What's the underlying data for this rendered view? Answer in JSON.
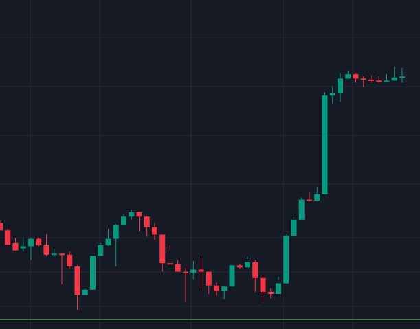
{
  "chart_data": {
    "type": "candlestick",
    "x": [
      1,
      2,
      3,
      4,
      5,
      6,
      7,
      8,
      9,
      10,
      11,
      12,
      13,
      14,
      15,
      16,
      17,
      18,
      19,
      20,
      21,
      22,
      23,
      24,
      25,
      26,
      27,
      28,
      29,
      30,
      31,
      32,
      33,
      34,
      35,
      36,
      37,
      38,
      39,
      40,
      41,
      42,
      43,
      44,
      45,
      46,
      47,
      48,
      49,
      50,
      51,
      52,
      53
    ],
    "ohlc": [
      [
        3.0,
        2.3,
        3.2,
        3.0
      ],
      [
        2.3,
        0.9,
        2.4,
        1.1
      ],
      [
        1.1,
        0.4,
        1.6,
        0.6
      ],
      [
        0.6,
        0.8,
        1.7,
        0.3
      ],
      [
        0.8,
        1.5,
        1.6,
        -0.5
      ],
      [
        1.5,
        0.9,
        1.6,
        0.8
      ],
      [
        0.9,
        0.0,
        1.9,
        -0.1
      ],
      [
        0.0,
        0.1,
        0.6,
        -0.2
      ],
      [
        0.1,
        0.0,
        0.1,
        -2.8
      ],
      [
        0.0,
        -1.1,
        0.3,
        -1.3
      ],
      [
        -1.1,
        -3.8,
        -1.0,
        -5.2
      ],
      [
        -3.8,
        -3.3,
        -3.2,
        -3.3
      ],
      [
        -3.3,
        -0.1,
        -1.6,
        -0.3
      ],
      [
        -0.1,
        0.9,
        1.1,
        0.3
      ],
      [
        0.9,
        1.5,
        2.4,
        0.8
      ],
      [
        1.5,
        2.8,
        2.9,
        -1.1
      ],
      [
        2.8,
        3.6,
        3.8,
        3.6
      ],
      [
        3.6,
        4.0,
        4.2,
        3.3
      ],
      [
        4.0,
        3.6,
        3.7,
        2.2
      ],
      [
        3.6,
        2.6,
        3.4,
        1.7
      ],
      [
        2.6,
        1.9,
        3.0,
        1.4
      ],
      [
        1.9,
        -0.8,
        -0.7,
        -1.6
      ],
      [
        -0.8,
        -0.9,
        0.9,
        0.4
      ],
      [
        -0.9,
        -1.6,
        -0.5,
        -1.5
      ],
      [
        -1.6,
        -1.7,
        -1.3,
        -4.5
      ],
      [
        -1.7,
        -1.4,
        -0.6,
        -2.3
      ],
      [
        -1.4,
        -1.6,
        -0.2,
        -3.2
      ],
      [
        -1.6,
        -2.9,
        -1.7,
        -3.7
      ],
      [
        -2.9,
        -3.4,
        -2.6,
        -3.9
      ],
      [
        -3.4,
        -3.0,
        -3.1,
        -4.2
      ],
      [
        -3.0,
        -1.0,
        -1.5,
        -1.5
      ],
      [
        -1.0,
        -1.2,
        -0.9,
        -1.3
      ],
      [
        -1.2,
        -0.7,
        -0.2,
        -0.4
      ],
      [
        -0.7,
        -2.2,
        -0.5,
        -3.5
      ],
      [
        -2.2,
        -3.5,
        -1.9,
        -4.5
      ],
      [
        -3.5,
        -3.7,
        -3.2,
        -4.1
      ],
      [
        -3.7,
        -2.7,
        -2.4,
        -2.1
      ],
      [
        -2.7,
        1.8,
        1.9,
        1.5
      ],
      [
        1.8,
        3.3,
        3.5,
        3.4
      ],
      [
        3.3,
        5.2,
        5.4,
        5.1
      ],
      [
        5.2,
        5.1,
        5.9,
        5.0
      ],
      [
        5.1,
        5.7,
        6.4,
        5.7
      ],
      [
        5.7,
        15.0,
        15.3,
        13.9
      ],
      [
        15.0,
        15.2,
        15.9,
        14.2
      ],
      [
        15.2,
        16.6,
        17.1,
        14.4
      ],
      [
        16.6,
        17.0,
        17.3,
        16.6
      ],
      [
        17.0,
        16.6,
        17.1,
        16.2
      ],
      [
        16.6,
        16.5,
        16.8,
        15.8
      ],
      [
        16.5,
        16.4,
        16.9,
        16.2
      ],
      [
        16.4,
        16.3,
        16.8,
        16.2
      ],
      [
        16.3,
        16.4,
        17.0,
        16.3
      ],
      [
        16.4,
        16.7,
        17.7,
        16.5
      ],
      [
        16.7,
        16.8,
        17.6,
        16.2
      ]
    ],
    "colors": {
      "background": "#161a25",
      "grid": "#242934",
      "up": "#089981",
      "down": "#f23645",
      "baseline": "#4caf50"
    },
    "ylim": [
      -7,
      24
    ],
    "grid": true,
    "legend": "none"
  }
}
